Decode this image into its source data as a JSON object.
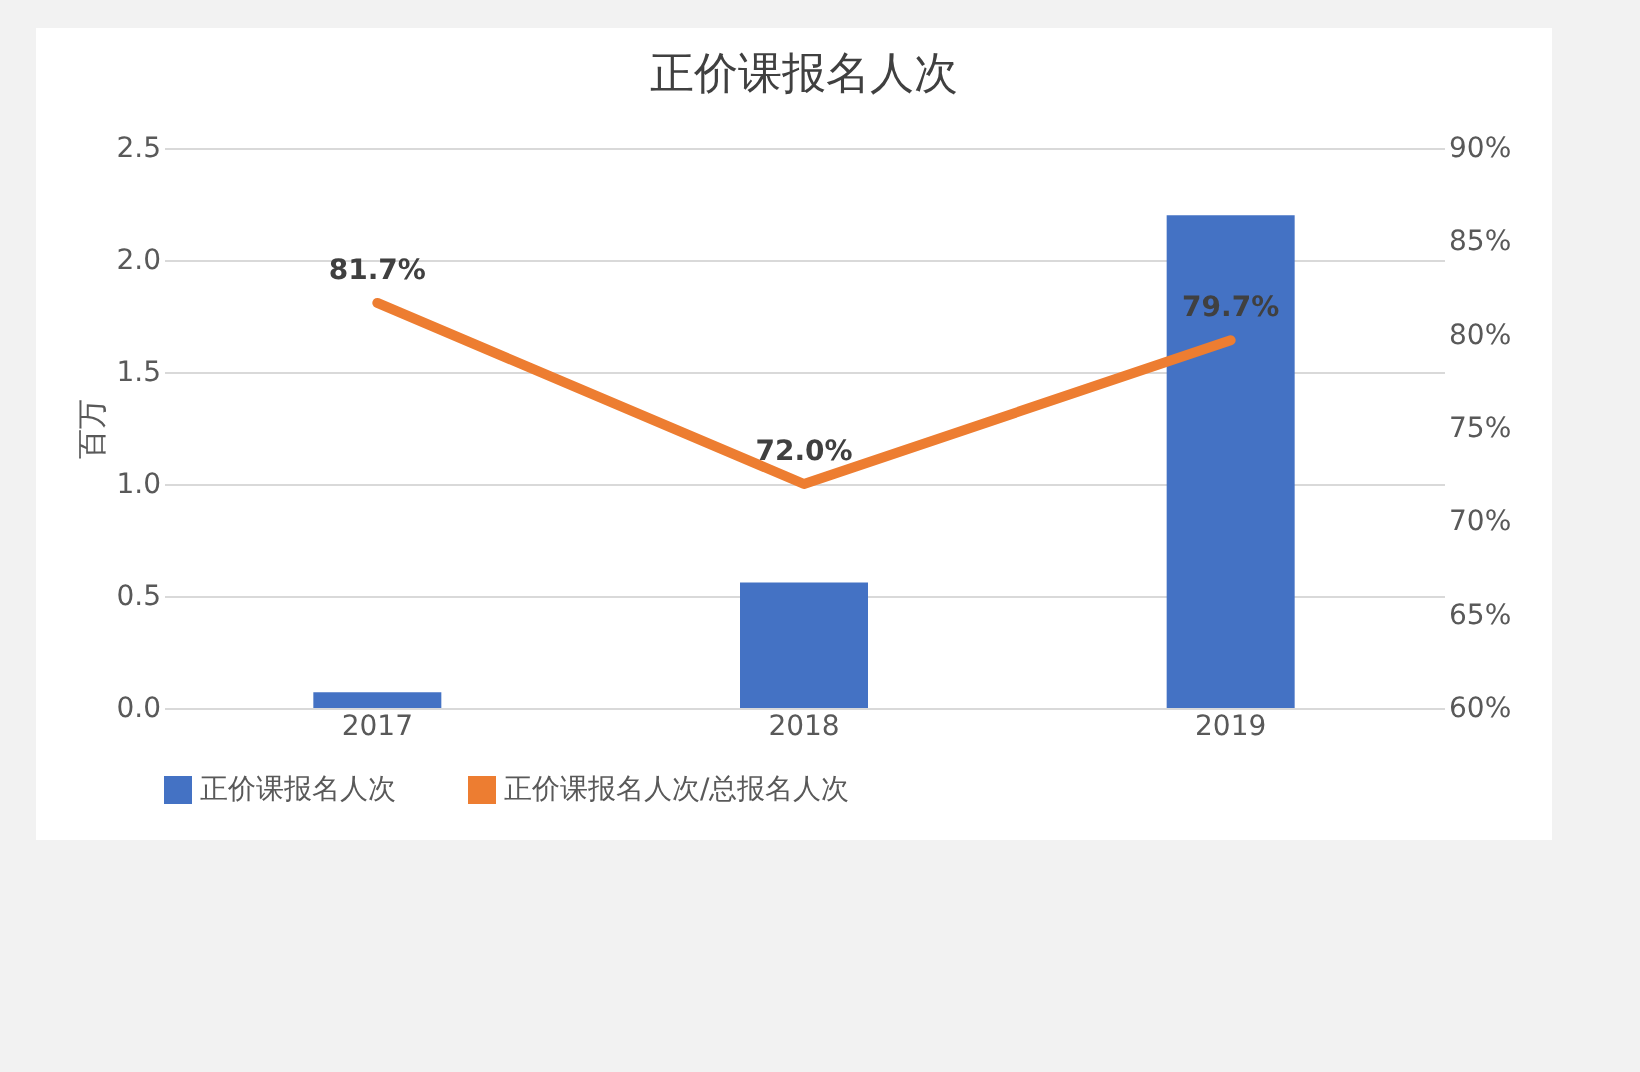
{
  "chart_data": {
    "type": "bar",
    "title": "正价课报名人次",
    "ylabel": "百万",
    "categories": [
      "2017",
      "2018",
      "2019"
    ],
    "series": [
      {
        "name": "正价课报名人次",
        "color": "#4472c4",
        "values": [
          0.07,
          0.56,
          2.2
        ]
      },
      {
        "name": "正价课报名人次/总报名人次",
        "type": "line",
        "axis": "y2",
        "color": "#ed7d31",
        "values": [
          81.7,
          72.0,
          79.7
        ],
        "value_labels": [
          "81.7%",
          "72.0%",
          "79.7%"
        ]
      }
    ],
    "ylim": [
      0,
      2.5
    ],
    "yticks": [
      {
        "value": 0,
        "label": "0.0"
      },
      {
        "value": 0.5,
        "label": "0.5"
      },
      {
        "value": 1,
        "label": "1.0"
      },
      {
        "value": 1.5,
        "label": "1.5"
      },
      {
        "value": 2,
        "label": "2.0"
      },
      {
        "value": 2.5,
        "label": "2.5"
      }
    ],
    "y2lim": [
      60,
      90
    ],
    "y2ticks": [
      {
        "value": 60,
        "label": "60%"
      },
      {
        "value": 65,
        "label": "65%"
      },
      {
        "value": 70,
        "label": "70%"
      },
      {
        "value": 75,
        "label": "75%"
      },
      {
        "value": 80,
        "label": "80%"
      },
      {
        "value": 85,
        "label": "85%"
      },
      {
        "value": 90,
        "label": "90%"
      }
    ],
    "grid": "y",
    "legend": "bottom"
  }
}
